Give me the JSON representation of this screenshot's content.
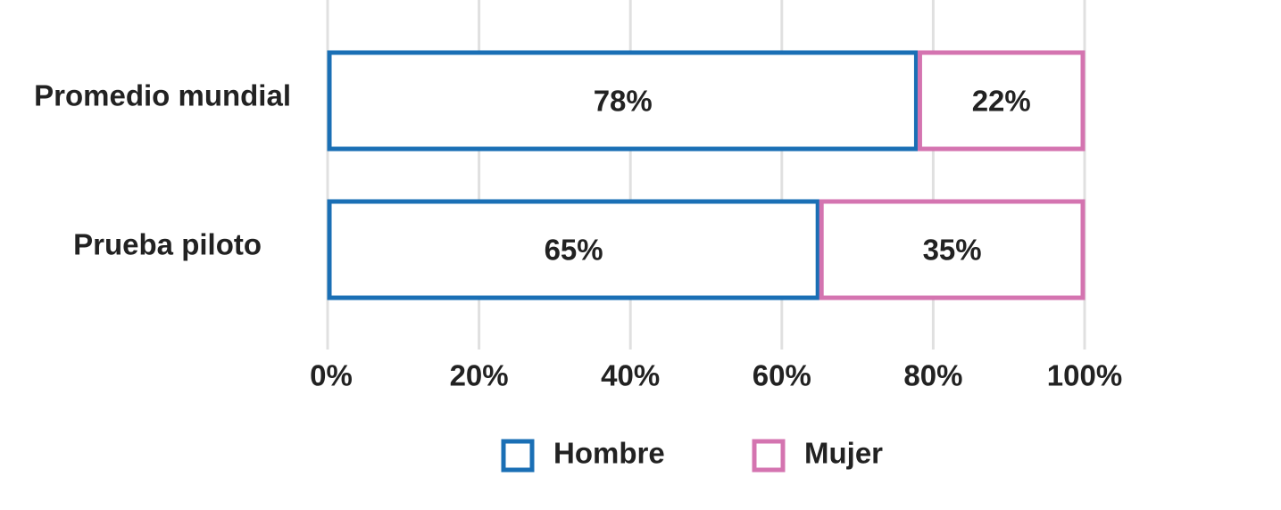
{
  "chart_data": {
    "type": "stacked-barh",
    "categories": [
      "Promedio mundial",
      "Prueba piloto"
    ],
    "series": [
      {
        "name": "Hombre",
        "color": "#1a6fb5",
        "values": [
          78,
          65
        ],
        "value_labels": [
          "78%",
          "65%"
        ]
      },
      {
        "name": "Mujer",
        "color": "#d474b0",
        "values": [
          22,
          35
        ],
        "value_labels": [
          "22%",
          "35%"
        ]
      }
    ],
    "xlim": [
      0,
      100
    ],
    "xticks": [
      {
        "value": 0,
        "label": "0%"
      },
      {
        "value": 20,
        "label": "20%"
      },
      {
        "value": 40,
        "label": "40%"
      },
      {
        "value": 60,
        "label": "60%"
      },
      {
        "value": 80,
        "label": "80%"
      },
      {
        "value": 100,
        "label": "100%"
      }
    ],
    "grid": true,
    "legend": "bottom"
  }
}
